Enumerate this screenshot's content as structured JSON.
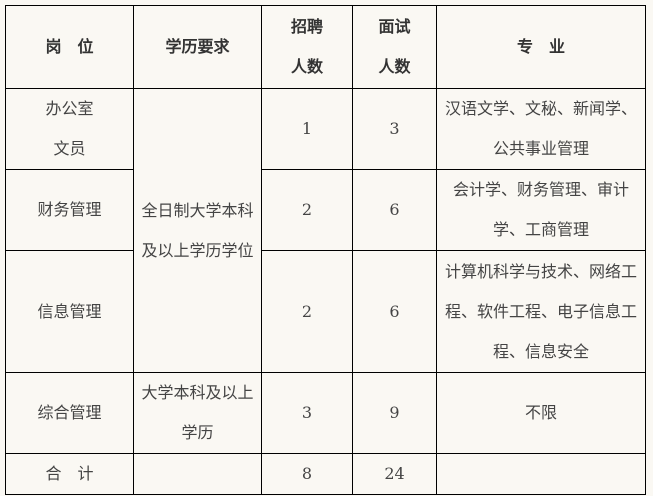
{
  "headers": {
    "position": "岗　位",
    "education": "学历要求",
    "hire": "招聘\n人数",
    "interview": "面试\n人数",
    "major": "专　业"
  },
  "shared_education_1": "全日制大学本科及以上学历学位",
  "rows": [
    {
      "position": "办公室\n文员",
      "hire": "1",
      "interview": "3",
      "major": "汉语文学、文秘、新闻学、公共事业管理"
    },
    {
      "position": "财务管理",
      "hire": "2",
      "interview": "6",
      "major": "会计学、财务管理、审计学、工商管理"
    },
    {
      "position": "信息管理",
      "hire": "2",
      "interview": "6",
      "major": "计算机科学与技术、网络工程、软件工程、电子信息工程、信息安全"
    },
    {
      "position": "综合管理",
      "education": "大学本科及以上学历",
      "hire": "3",
      "interview": "9",
      "major": "不限"
    }
  ],
  "total": {
    "label": "合　计",
    "education": "",
    "hire": "8",
    "interview": "24"
  }
}
